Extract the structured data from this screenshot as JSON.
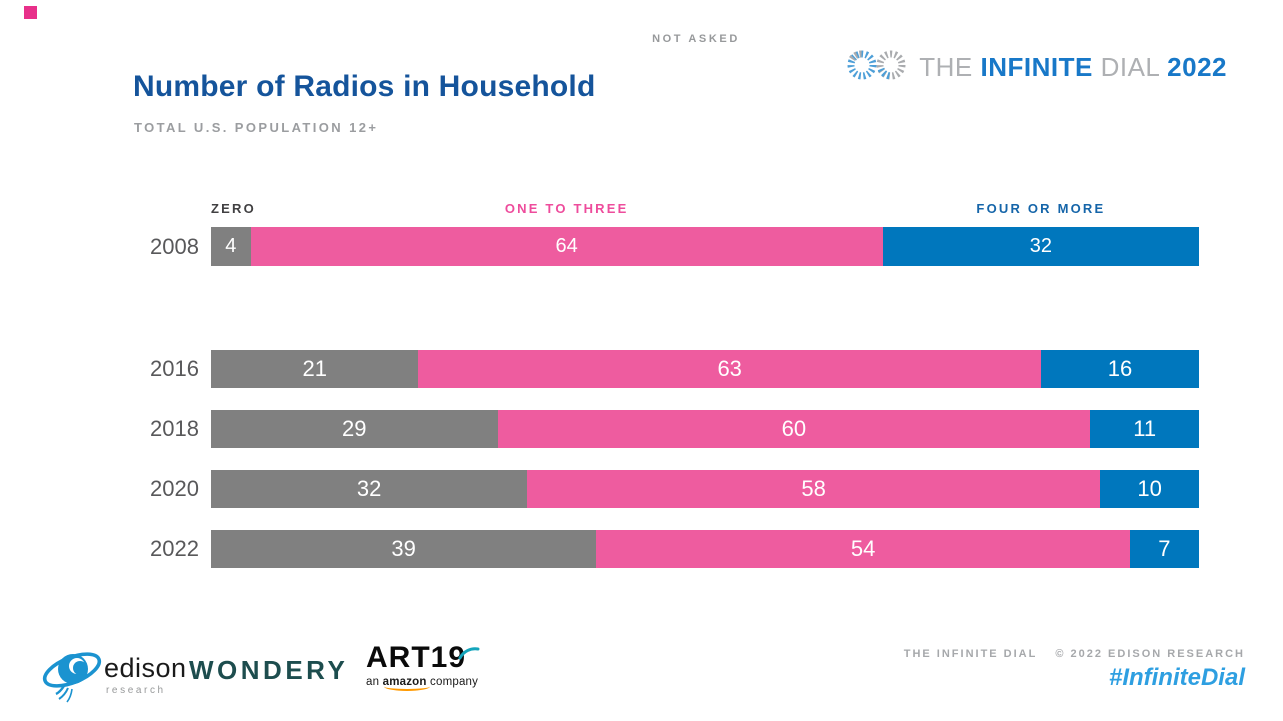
{
  "slide": {
    "corner_marker_color": "#E8308A",
    "not_asked": "NOT ASKED",
    "title": "Number of Radios in Household",
    "title_color": "#15549B",
    "subtitle": "TOTAL U.S. POPULATION 12+"
  },
  "brand_logo": {
    "word1": "THE",
    "word2": "INFINITE",
    "word3": "DIAL",
    "word4": "2022",
    "blue": "#1878C8",
    "gray": "#AEB0B3"
  },
  "chart_data": {
    "type": "bar",
    "orientation": "horizontal-stacked",
    "title": "Number of Radios in Household",
    "subtitle": "TOTAL U.S. POPULATION 12+",
    "annotation": "NOT ASKED",
    "categories": [
      "2008",
      "2016",
      "2018",
      "2020",
      "2022"
    ],
    "series": [
      {
        "key": "zero",
        "name": "Zero",
        "legend_label": "ZERO",
        "legend_color": "#414042",
        "color": "#808080",
        "values": [
          4,
          21,
          29,
          32,
          39
        ]
      },
      {
        "key": "one-to-three",
        "name": "One to Three",
        "legend_label": "ONE TO THREE",
        "legend_color": "#EE4C9C",
        "color": "#EE5C9F",
        "values": [
          64,
          63,
          60,
          58,
          54
        ]
      },
      {
        "key": "four-or-more",
        "name": "Four or More",
        "legend_label": "FOUR OR MORE",
        "legend_color": "#1565A9",
        "color": "#0077BD",
        "values": [
          32,
          16,
          11,
          10,
          7
        ]
      }
    ],
    "xlim": [
      0,
      100
    ],
    "values_shown_in_bars": true,
    "grid": false,
    "legend_position": "above-2008-bar"
  },
  "footer": {
    "edison": {
      "name": "edison",
      "tagline": "research"
    },
    "wondery": {
      "name": "WONDERY"
    },
    "art19": {
      "name": "ART19",
      "tagline_prefix": "an ",
      "tagline_brand": "amazon",
      "tagline_suffix": " company"
    },
    "credit": {
      "left": "THE INFINITE DIAL",
      "right": "© 2022 EDISON RESEARCH"
    },
    "hashtag": "#InfiniteDial",
    "hashtag_color": "#2E9FE1"
  }
}
